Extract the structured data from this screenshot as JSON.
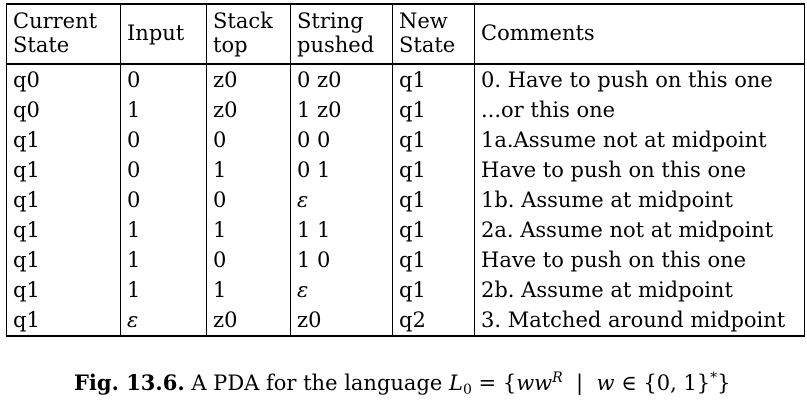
{
  "table": {
    "headers": [
      [
        "Current",
        "State"
      ],
      [
        "Input"
      ],
      [
        "Stack",
        "top"
      ],
      [
        "String",
        "pushed"
      ],
      [
        "New",
        "State"
      ],
      [
        "Comments"
      ]
    ],
    "rows": [
      [
        "q0",
        "0",
        "z0",
        "0 z0",
        "q1",
        "0. Have to push on this one"
      ],
      [
        "q0",
        "1",
        "z0",
        "1 z0",
        "q1",
        "...or this one"
      ],
      [
        "q1",
        "0",
        "0",
        "0 0",
        "q1",
        "1a.Assume not at midpoint"
      ],
      [
        "q1",
        "0",
        "1",
        "0 1",
        "q1",
        "Have to push on this one"
      ],
      [
        "q1",
        "0",
        "0",
        "ε",
        "q1",
        "1b. Assume at midpoint"
      ],
      [
        "q1",
        "1",
        "1",
        "1 1",
        "q1",
        "2a. Assume not at midpoint"
      ],
      [
        "q1",
        "1",
        "0",
        "1 0",
        "q1",
        "Have to push on this one"
      ],
      [
        "q1",
        "1",
        "1",
        "ε",
        "q1",
        "2b. Assume at midpoint"
      ],
      [
        "q1",
        "ε",
        "z0",
        "z0",
        "q2",
        "3. Matched around midpoint"
      ]
    ]
  },
  "caption": {
    "label": "Fig. 13.6.",
    "text": "A PDA for the language",
    "L": "L",
    "L_sub": "0",
    "eq": " = {",
    "ww": "ww",
    "R": "R",
    "bar": "  |  ",
    "w": "w",
    "in": " ∈ {0, 1}",
    "star": "*",
    "close": "}"
  }
}
